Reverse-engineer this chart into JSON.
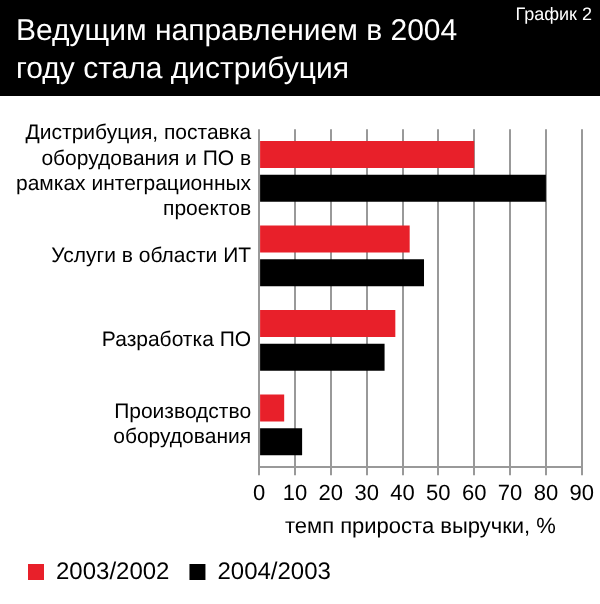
{
  "chart_data": {
    "type": "bar",
    "orientation": "horizontal",
    "title": "Ведущим направлением в 2004 году стала дистрибуция",
    "annotations": [
      "График 2"
    ],
    "categories": [
      "Дистрибуция, поставка оборудования и ПО в рамках интеграционных проектов",
      "Услуги в области ИТ",
      "Разработка ПО",
      "Производство оборудования"
    ],
    "series": [
      {
        "name": "2003/2002",
        "color": "#e8202a",
        "values": [
          60,
          42,
          38,
          7
        ]
      },
      {
        "name": "2004/2003",
        "color": "#000000",
        "values": [
          80,
          46,
          35,
          12
        ]
      }
    ],
    "xlabel": "темп прироста выручки, %",
    "xlim": [
      0,
      90
    ],
    "xticks": [
      0,
      10,
      20,
      30,
      40,
      50,
      60,
      70,
      80,
      90
    ],
    "grid": "x",
    "legend": "bottom"
  }
}
